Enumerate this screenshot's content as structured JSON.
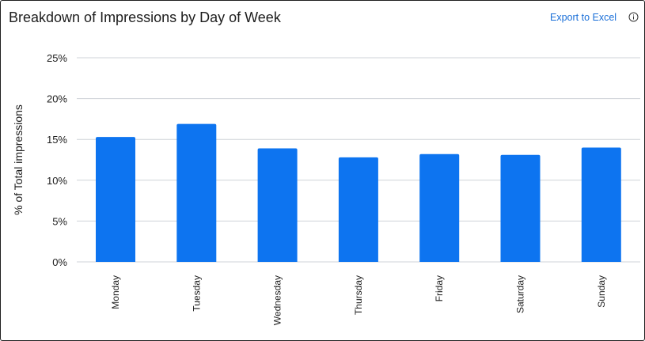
{
  "header": {
    "title": "Breakdown of Impressions by Day of Week",
    "export_label": "Export to Excel",
    "info_icon": "info-circle-icon"
  },
  "colors": {
    "bar": "#0d74f0",
    "grid": "#cfd3d8",
    "text": "#1d1d1d",
    "link": "#1a6fd8"
  },
  "chart_data": {
    "type": "bar",
    "title": "Breakdown of Impressions by Day of Week",
    "xlabel": "",
    "ylabel": "% of Total impressions",
    "categories": [
      "Monday",
      "Tuesday",
      "Wednesday",
      "Thursday",
      "Friday",
      "Saturday",
      "Sunday"
    ],
    "values": [
      15.3,
      16.9,
      13.9,
      12.8,
      13.2,
      13.1,
      14.0
    ],
    "ylim": [
      0,
      25
    ],
    "yticks": [
      0,
      5,
      10,
      15,
      20,
      25
    ],
    "ytick_labels": [
      "0%",
      "5%",
      "10%",
      "15%",
      "20%",
      "25%"
    ],
    "grid": true,
    "legend": "none"
  }
}
